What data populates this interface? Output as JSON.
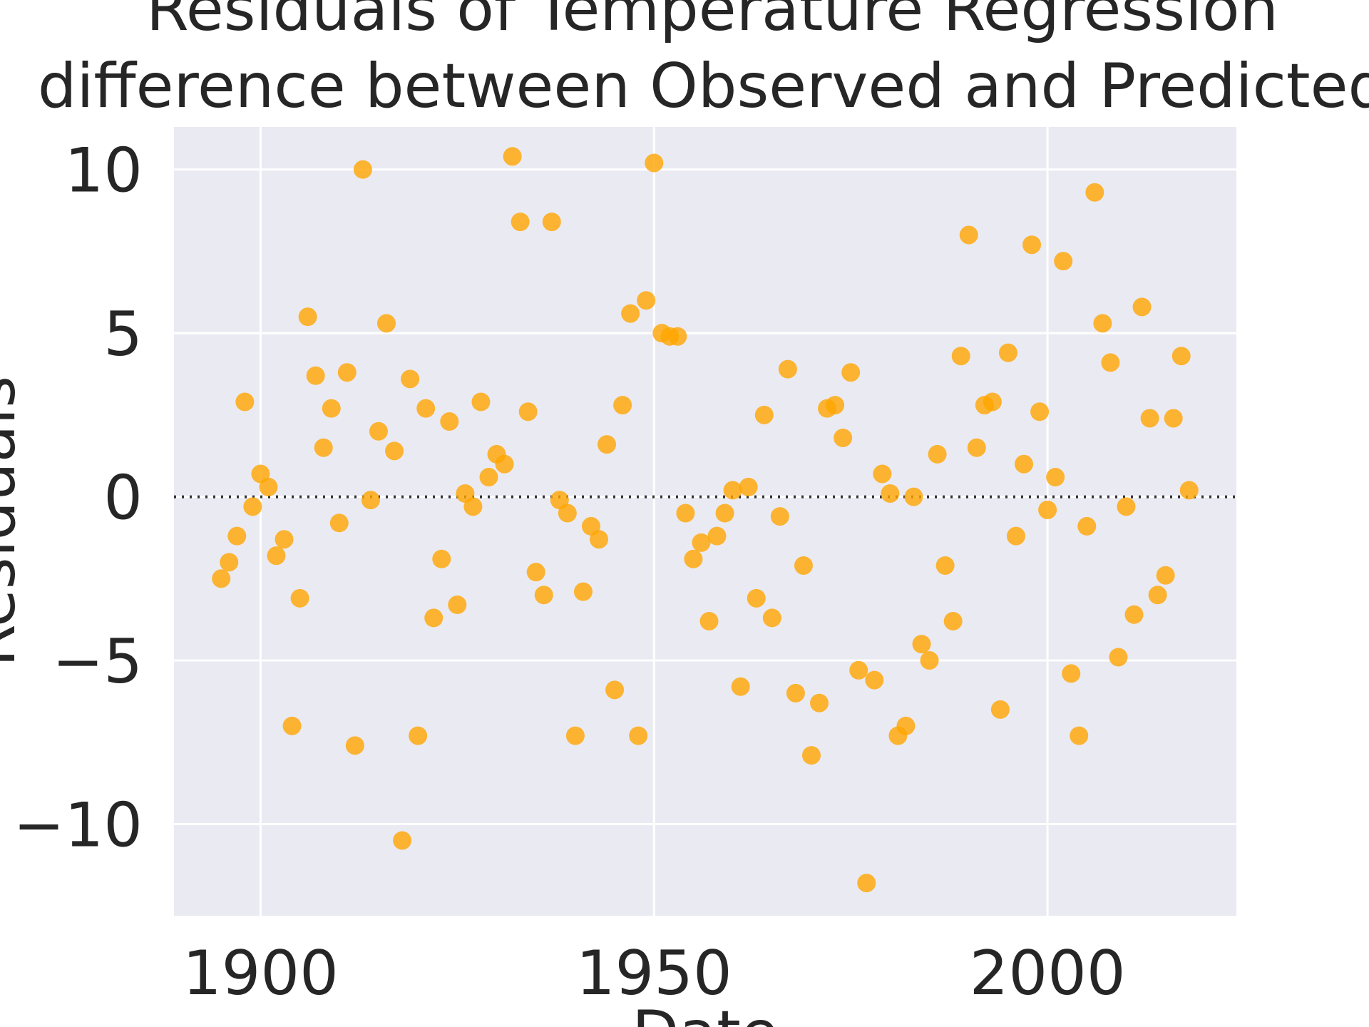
{
  "chart_data": {
    "type": "scatter",
    "title_lines": [
      "Residuals of Temperature Regression",
      "difference between Observed and Predicted"
    ],
    "xlabel": "Date",
    "ylabel": "Residuals",
    "xlim": [
      1889,
      2024
    ],
    "ylim": [
      -12.8,
      11.3
    ],
    "xticks": [
      1900,
      1950,
      2000
    ],
    "xtick_labels": [
      "1900",
      "1950",
      "2000"
    ],
    "yticks": [
      -10,
      -5,
      0,
      5,
      10
    ],
    "ytick_labels": [
      "−10",
      "−5",
      "0",
      "5",
      "10"
    ],
    "grid": true,
    "reference_line": {
      "y": 0,
      "style": "dotted"
    },
    "colors": {
      "background": "#eaeaf2",
      "grid": "#ffffff",
      "point": "#ffa500",
      "text": "#262626",
      "reference_line": "#333333"
    },
    "point_opacity": 0.8,
    "x": [
      1895,
      1896,
      1897,
      1898,
      1899,
      1900,
      1901,
      1902,
      1903,
      1904,
      1905,
      1906,
      1907,
      1908,
      1909,
      1910,
      1911,
      1912,
      1913,
      1914,
      1915,
      1916,
      1917,
      1918,
      1919,
      1920,
      1921,
      1922,
      1923,
      1924,
      1925,
      1926,
      1927,
      1928,
      1929,
      1930,
      1931,
      1932,
      1933,
      1934,
      1935,
      1936,
      1937,
      1938,
      1939,
      1940,
      1941,
      1942,
      1943,
      1944,
      1945,
      1946,
      1947,
      1948,
      1949,
      1950,
      1951,
      1952,
      1953,
      1954,
      1955,
      1956,
      1957,
      1958,
      1959,
      1960,
      1961,
      1962,
      1963,
      1964,
      1965,
      1966,
      1967,
      1968,
      1969,
      1970,
      1971,
      1972,
      1973,
      1974,
      1975,
      1976,
      1977,
      1978,
      1979,
      1980,
      1981,
      1982,
      1983,
      1984,
      1985,
      1986,
      1987,
      1988,
      1989,
      1990,
      1991,
      1992,
      1993,
      1994,
      1995,
      1996,
      1997,
      1998,
      1999,
      2000,
      2001,
      2002,
      2003,
      2004,
      2005,
      2006,
      2007,
      2008,
      2009,
      2010,
      2011,
      2012,
      2013,
      2014,
      2015,
      2016,
      2017,
      2018
    ],
    "y": [
      -2.5,
      -2.0,
      -1.2,
      2.9,
      -0.3,
      0.7,
      0.3,
      -1.8,
      -1.3,
      -7.0,
      -3.1,
      5.5,
      3.7,
      1.5,
      2.7,
      -0.8,
      3.8,
      -7.6,
      10.0,
      -0.1,
      2.0,
      5.3,
      1.4,
      -10.5,
      3.6,
      -7.3,
      2.7,
      -3.7,
      -1.9,
      2.3,
      -3.3,
      0.1,
      -0.3,
      2.9,
      0.6,
      1.3,
      1.0,
      10.4,
      8.4,
      2.6,
      -2.3,
      -3.0,
      8.4,
      -0.1,
      -0.5,
      -7.3,
      -2.9,
      -0.9,
      -1.3,
      1.6,
      -5.9,
      2.8,
      5.6,
      -7.3,
      6.0,
      10.2,
      5.0,
      4.9,
      4.9,
      -0.5,
      -1.9,
      -1.4,
      -3.8,
      -1.2,
      -0.5,
      0.2,
      -5.8,
      0.3,
      -3.1,
      2.5,
      -3.7,
      -0.6,
      3.9,
      -6.0,
      -2.1,
      -7.9,
      -6.3,
      2.7,
      2.8,
      1.8,
      3.8,
      -5.3,
      -11.8,
      -5.6,
      0.7,
      0.1,
      -7.3,
      -7.0,
      0.0,
      -4.5,
      -5.0,
      1.3,
      -2.1,
      -3.8,
      4.3,
      8.0,
      1.5,
      2.8,
      2.9,
      -6.5,
      4.4,
      -1.2,
      1.0,
      7.7,
      2.6,
      -0.4,
      0.6,
      7.2,
      -5.4,
      -7.3,
      -0.9,
      9.3,
      5.3,
      4.1,
      -4.9,
      -0.3,
      -3.6,
      5.8,
      2.4,
      -3.0,
      -2.4,
      2.4,
      4.3,
      0.2
    ]
  }
}
